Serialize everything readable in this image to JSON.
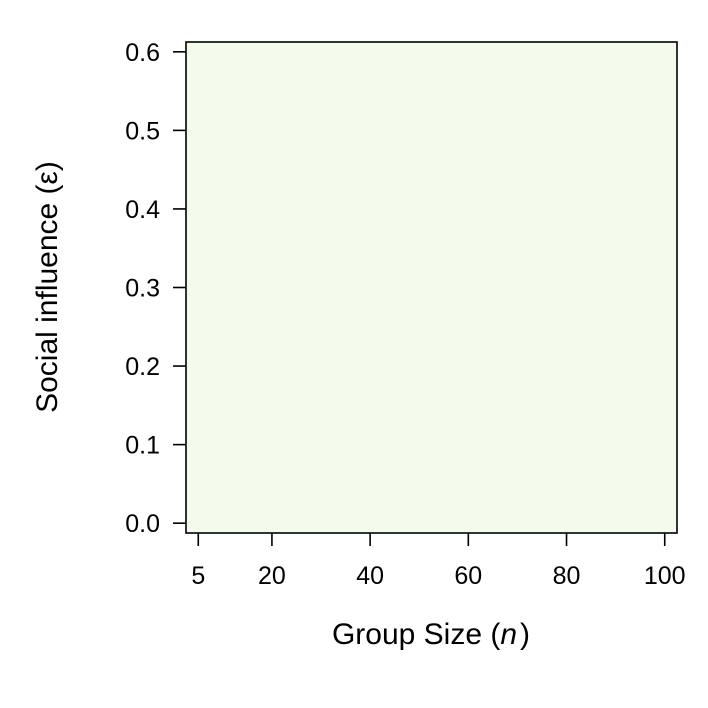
{
  "chart_data": {
    "type": "heatmap",
    "title": "",
    "xlabel": "Group Size (",
    "xlabel_var": "n",
    "xlabel_suffix": ")",
    "ylabel": "Social influence (ε)",
    "x_ticks": [
      5,
      20,
      40,
      60,
      80,
      100
    ],
    "y_ticks": [
      "0.0",
      "0.1",
      "0.2",
      "0.3",
      "0.4",
      "0.5",
      "0.6"
    ],
    "y_tick_values": [
      0.0,
      0.1,
      0.2,
      0.3,
      0.4,
      0.5,
      0.6
    ],
    "xlim": [
      2.5,
      102.5
    ],
    "ylim": [
      -0.0125,
      0.6125
    ],
    "fill_color": "#f3fbec",
    "grid": false,
    "legend": false
  }
}
